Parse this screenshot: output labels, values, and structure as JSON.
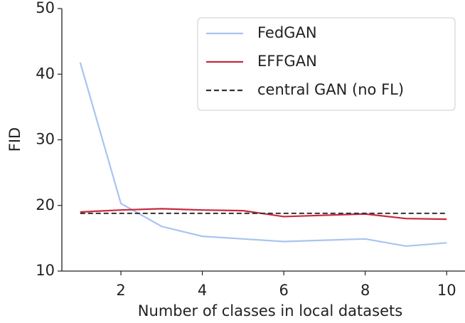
{
  "chart_data": {
    "type": "line",
    "x_label": "Number of classes in local datasets",
    "y_label": "FID",
    "x": [
      1,
      2,
      3,
      4,
      5,
      6,
      7,
      8,
      9,
      10
    ],
    "series": [
      {
        "name": "FedGAN",
        "color": "#a9c4f0",
        "dash": false,
        "values": [
          41.8,
          20.3,
          16.8,
          15.3,
          14.9,
          14.5,
          14.7,
          14.9,
          13.8,
          14.3
        ]
      },
      {
        "name": "EFFGAN",
        "color": "#c8283f",
        "dash": false,
        "values": [
          19.0,
          19.3,
          19.5,
          19.3,
          19.2,
          18.3,
          18.5,
          18.7,
          18.0,
          17.9
        ]
      },
      {
        "name": "central GAN (no FL)",
        "color": "#333333",
        "dash": true,
        "values": [
          18.8,
          18.8,
          18.8,
          18.8,
          18.8,
          18.8,
          18.8,
          18.8,
          18.8,
          18.8
        ]
      }
    ],
    "xlim": [
      0.55,
      10.45
    ],
    "xticks": [
      2,
      4,
      6,
      8,
      10
    ],
    "ylim": [
      10,
      50
    ],
    "yticks": [
      10,
      20,
      30,
      40,
      50
    ],
    "legend": "upper right"
  }
}
